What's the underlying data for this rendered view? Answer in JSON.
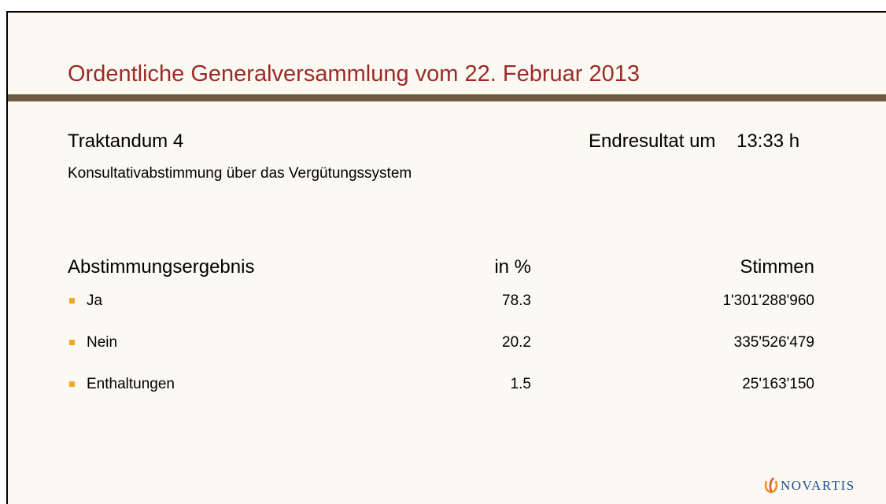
{
  "header": {
    "title": "Ordentliche Generalversammlung vom 22. Februar 2013"
  },
  "agenda": {
    "item": "Traktandum 4",
    "description": "Konsultativabstimmung über das Vergütungssystem",
    "time_label": "Endresultat um",
    "time": "13:33 h"
  },
  "table": {
    "headers": [
      "Abstimmungsergebnis",
      "in %",
      "Stimmen"
    ],
    "rows": [
      [
        "Ja",
        78.3,
        "1'301'288'960"
      ],
      [
        "Nein",
        20.2,
        "335'526'479"
      ],
      [
        "Enthaltungen",
        1.5,
        "25'163'150"
      ]
    ]
  },
  "footer": {
    "logo": "NOVARTIS"
  }
}
